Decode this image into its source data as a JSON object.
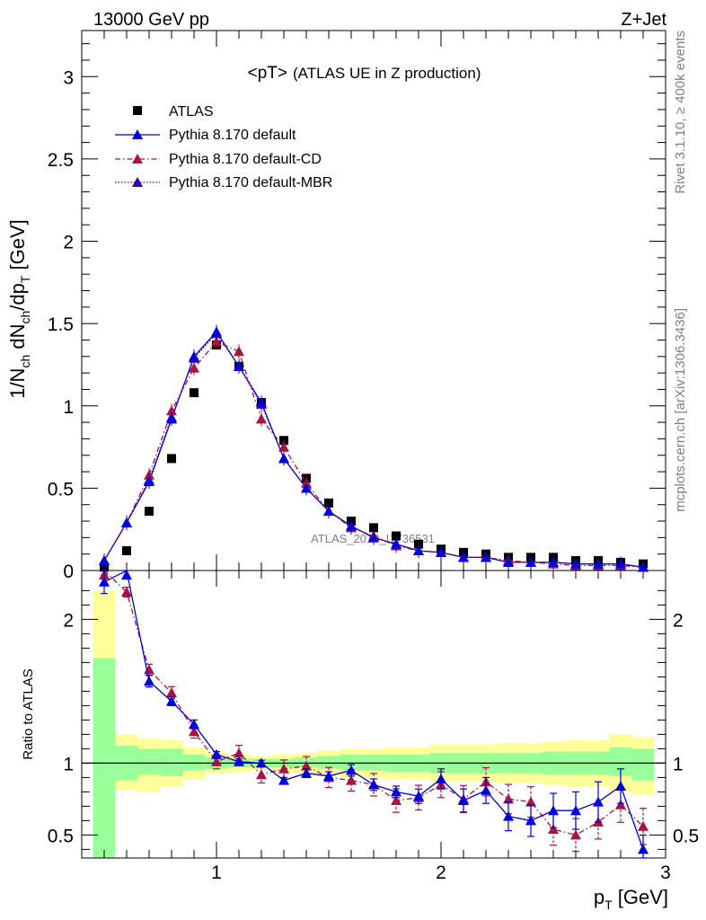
{
  "header": {
    "energy": "13000 GeV pp",
    "process": "Z+Jet",
    "title_main": "<pT>",
    "title_sub": "(ATLAS UE in Z production)",
    "rivet_label": "Rivet 3.1.10, ≥ 400k events",
    "mcplots_label": "mcplots.cern.ch [arXiv:1306.3436]",
    "watermark": "ATLAS_2019_I1736531"
  },
  "legend": [
    {
      "key": "data",
      "label": "ATLAS"
    },
    {
      "key": "def",
      "label": "Pythia 8.170 default"
    },
    {
      "key": "cd",
      "label": "Pythia 8.170 default-CD"
    },
    {
      "key": "mbr",
      "label": "Pythia 8.170 default-MBR"
    }
  ],
  "axes": {
    "ylabel_main": "1/N_ch dN_ch/dp_T [GeV]",
    "ylabel_ratio": "Ratio to ATLAS",
    "xlabel": "p_T [GeV]"
  },
  "colors": {
    "data": "#000000",
    "default": "#0000dd",
    "cd": "#aa1144",
    "mbr": "#3300aa",
    "band_inner": "#99ff99",
    "band_outer": "#ffff99"
  },
  "chart_data": [
    {
      "type": "scatter",
      "panel": "main",
      "xlim": [
        0.4,
        3.0
      ],
      "ylim": [
        0,
        3.28
      ],
      "x_ticks": [
        1,
        2,
        3
      ],
      "y_ticks": [
        0,
        0.5,
        1,
        1.5,
        2,
        2.5,
        3
      ],
      "x": [
        0.5,
        0.6,
        0.7,
        0.8,
        0.9,
        1.0,
        1.1,
        1.2,
        1.3,
        1.4,
        1.5,
        1.6,
        1.7,
        1.8,
        1.9,
        2.0,
        2.1,
        2.2,
        2.3,
        2.4,
        2.5,
        2.6,
        2.7,
        2.8,
        2.9
      ],
      "series": [
        {
          "name": "ATLAS",
          "key": "data",
          "values": [
            0.02,
            0.12,
            0.36,
            0.68,
            1.08,
            1.37,
            1.24,
            1.02,
            0.79,
            0.56,
            0.41,
            0.3,
            0.26,
            0.21,
            0.16,
            0.13,
            0.11,
            0.1,
            0.08,
            0.08,
            0.08,
            0.06,
            0.06,
            0.05,
            0.04
          ]
        },
        {
          "name": "Pythia 8.170 default",
          "key": "def",
          "values": [
            0.06,
            0.29,
            0.54,
            0.92,
            1.3,
            1.45,
            1.24,
            1.02,
            0.68,
            0.5,
            0.36,
            0.27,
            0.2,
            0.16,
            0.12,
            0.11,
            0.08,
            0.08,
            0.05,
            0.05,
            0.05,
            0.04,
            0.04,
            0.04,
            0.02
          ]
        },
        {
          "name": "Pythia 8.170 default-CD",
          "key": "cd",
          "values": [
            0.06,
            0.29,
            0.58,
            0.97,
            1.23,
            1.39,
            1.33,
            0.92,
            0.75,
            0.53,
            0.36,
            0.26,
            0.21,
            0.15,
            0.12,
            0.11,
            0.08,
            0.08,
            0.06,
            0.05,
            0.04,
            0.03,
            0.03,
            0.03,
            0.02
          ]
        },
        {
          "name": "Pythia 8.170 default-MBR",
          "key": "mbr",
          "values": [
            0.06,
            0.29,
            0.55,
            0.93,
            1.29,
            1.44,
            1.24,
            1.01,
            0.68,
            0.5,
            0.36,
            0.27,
            0.2,
            0.16,
            0.12,
            0.11,
            0.08,
            0.08,
            0.05,
            0.05,
            0.05,
            0.04,
            0.04,
            0.04,
            0.02
          ]
        }
      ]
    },
    {
      "type": "line",
      "panel": "ratio",
      "xlim": [
        0.4,
        3.0
      ],
      "ylim": [
        0.34,
        2.34
      ],
      "y_ticks": [
        0.5,
        1,
        2
      ],
      "reference_line": 1,
      "bin_edges": [
        0.45,
        0.55,
        0.65,
        0.75,
        0.85,
        0.95,
        1.05,
        1.15,
        1.25,
        1.35,
        1.45,
        1.55,
        1.65,
        1.75,
        1.85,
        1.95,
        2.05,
        2.15,
        2.25,
        2.35,
        2.45,
        2.55,
        2.65,
        2.75,
        2.85,
        2.95
      ],
      "band_inner_lo": [
        0.34,
        0.88,
        0.92,
        0.91,
        0.95,
        0.96,
        0.97,
        0.97,
        0.97,
        0.97,
        0.96,
        0.95,
        0.95,
        0.94,
        0.94,
        0.93,
        0.93,
        0.93,
        0.93,
        0.93,
        0.92,
        0.92,
        0.92,
        0.91,
        0.88
      ],
      "band_inner_hi": [
        1.73,
        1.12,
        1.1,
        1.1,
        1.06,
        1.04,
        1.03,
        1.03,
        1.03,
        1.04,
        1.05,
        1.06,
        1.06,
        1.06,
        1.06,
        1.07,
        1.07,
        1.07,
        1.07,
        1.07,
        1.08,
        1.08,
        1.08,
        1.11,
        1.1
      ],
      "band_outer_lo": [
        0.34,
        0.81,
        0.8,
        0.84,
        0.89,
        0.93,
        0.94,
        0.95,
        0.94,
        0.93,
        0.91,
        0.9,
        0.9,
        0.89,
        0.89,
        0.87,
        0.87,
        0.87,
        0.86,
        0.86,
        0.85,
        0.84,
        0.84,
        0.8,
        0.78
      ],
      "band_outer_hi": [
        2.2,
        1.2,
        1.17,
        1.16,
        1.11,
        1.07,
        1.06,
        1.05,
        1.06,
        1.07,
        1.09,
        1.1,
        1.1,
        1.11,
        1.11,
        1.13,
        1.13,
        1.13,
        1.14,
        1.14,
        1.15,
        1.16,
        1.16,
        1.2,
        1.18
      ],
      "x": [
        0.5,
        0.6,
        0.7,
        0.8,
        0.9,
        1.0,
        1.1,
        1.2,
        1.3,
        1.4,
        1.5,
        1.6,
        1.7,
        1.8,
        1.9,
        2.0,
        2.1,
        2.2,
        2.3,
        2.4,
        2.5,
        2.6,
        2.7,
        2.8,
        2.9
      ],
      "series": [
        {
          "name": "Pythia 8.170 default",
          "key": "def",
          "values": [
            2.26,
            2.34,
            1.57,
            1.43,
            1.27,
            1.06,
            1.01,
            1.0,
            0.88,
            0.93,
            0.91,
            0.95,
            0.85,
            0.8,
            0.77,
            0.89,
            0.74,
            0.81,
            0.63,
            0.6,
            0.67,
            0.67,
            0.73,
            0.84,
            0.4
          ],
          "err": [
            0.08,
            0.06,
            0.04,
            0.03,
            0.03,
            0.02,
            0.02,
            0.02,
            0.02,
            0.03,
            0.03,
            0.04,
            0.04,
            0.04,
            0.05,
            0.07,
            0.08,
            0.09,
            0.1,
            0.11,
            0.12,
            0.13,
            0.14,
            0.12,
            0.1
          ]
        },
        {
          "name": "Pythia 8.170 default-CD",
          "key": "cd",
          "values": [
            2.34,
            2.19,
            1.65,
            1.49,
            1.22,
            1.01,
            1.07,
            0.92,
            0.96,
            0.98,
            0.9,
            0.88,
            0.85,
            0.74,
            0.76,
            0.85,
            0.75,
            0.87,
            0.75,
            0.73,
            0.54,
            0.5,
            0.59,
            0.71,
            0.56
          ]
        }
      ]
    }
  ]
}
